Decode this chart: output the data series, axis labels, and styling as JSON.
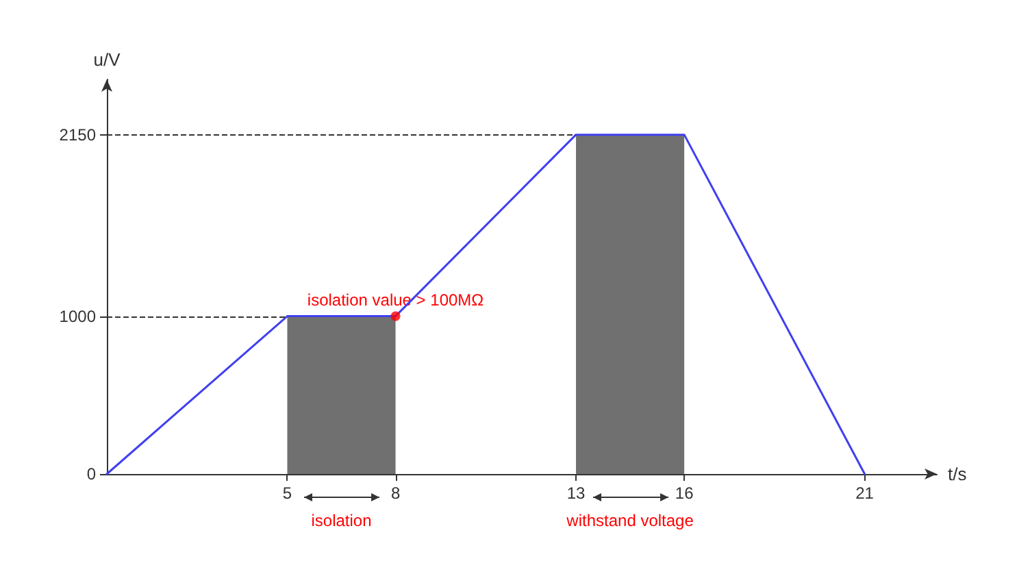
{
  "chart_data": {
    "type": "line",
    "xlabel": "t/s",
    "ylabel": "u/V",
    "xlim": [
      0,
      23
    ],
    "ylim": [
      0,
      2500
    ],
    "xticks": [
      5,
      8,
      13,
      16,
      21
    ],
    "yticks": [
      0,
      1000,
      2150
    ],
    "grid": false,
    "marker": "none",
    "line_style": "solid",
    "series": [
      {
        "type": "area",
        "color": "#707070",
        "x": [
          5,
          8
        ],
        "values": [
          1000,
          1000
        ]
      },
      {
        "type": "area",
        "color": "#707070",
        "x": [
          13,
          16
        ],
        "values": [
          2150,
          2150
        ]
      },
      {
        "color": "#4040f0",
        "x": [
          0,
          5,
          8,
          13,
          16,
          21
        ],
        "values": [
          0,
          1000,
          1000,
          2150,
          2150,
          0
        ]
      },
      {
        "type": "scatter",
        "marker": "circle",
        "color": "#ff0000",
        "x": [
          8
        ],
        "values": [
          1000
        ]
      }
    ],
    "ref_lines": [
      {
        "axis": "y",
        "value": 1000,
        "line_style": "dashed",
        "color": "#333333"
      },
      {
        "axis": "y",
        "value": 2150,
        "line_style": "dashed",
        "color": "#333333"
      }
    ],
    "annotations": [
      {
        "text": "isolation value > 100MΩ",
        "x": 8,
        "y": 1000
      },
      {
        "text": "isolation",
        "x": 6.5,
        "y": 0
      },
      {
        "text": "withstand voltage",
        "x": 14.5,
        "y": 0
      }
    ]
  }
}
